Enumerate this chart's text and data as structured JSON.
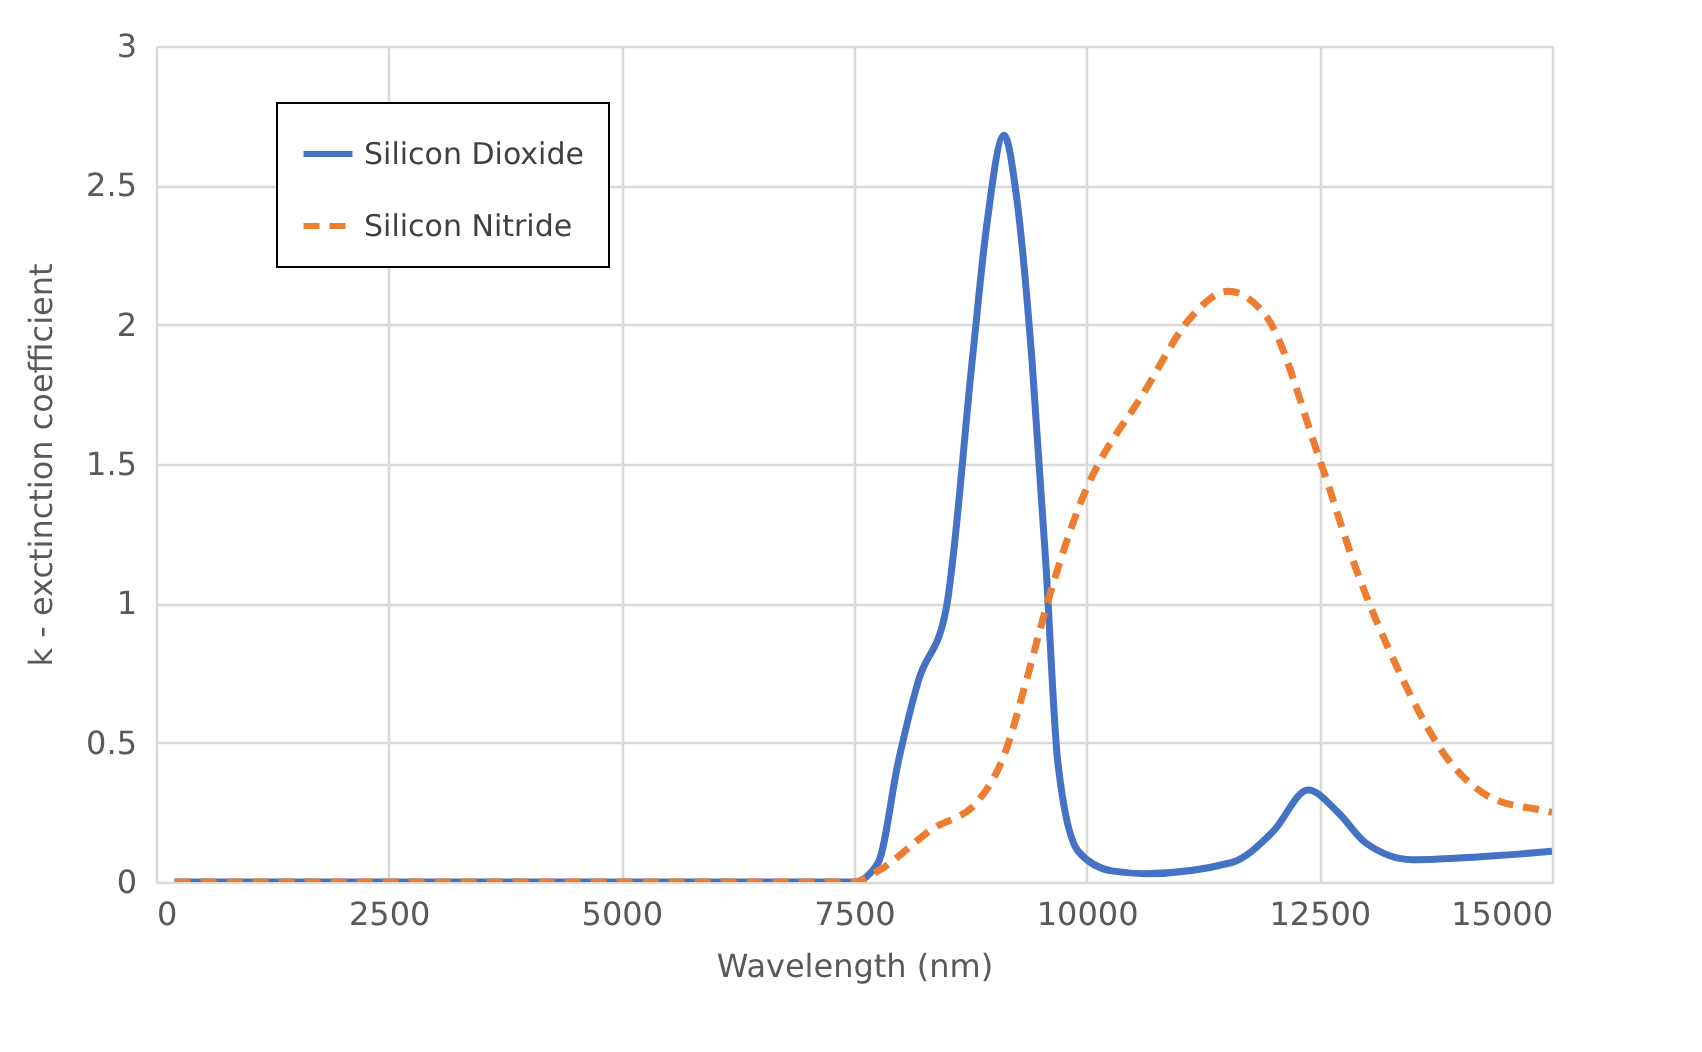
{
  "chart_data": {
    "type": "line",
    "xlabel": "Wavelength (nm)",
    "ylabel": "k - exctinction coefficient",
    "xlim": [
      0,
      15000
    ],
    "xticks": [
      0,
      2500,
      5000,
      7500,
      10000,
      12500,
      15000
    ],
    "ylim": [
      0,
      3
    ],
    "yticks": [
      0,
      0.5,
      1,
      1.5,
      2,
      2.5,
      3
    ],
    "grid": true,
    "legend": "top left",
    "series": [
      {
        "name": "Silicon Dioxide",
        "color": "#4472c4",
        "line_style": "solid",
        "x": [
          200,
          7500,
          7760,
          7975,
          8190,
          8490,
          8770,
          8920,
          9112,
          9250,
          9413,
          9560,
          9690,
          9910,
          10270,
          10640,
          11560,
          12000,
          12380,
          12700,
          13000,
          13500,
          14200,
          15000
        ],
        "values": [
          0,
          0,
          0.07,
          0.43,
          0.72,
          0.98,
          1.87,
          2.34,
          2.68,
          2.45,
          1.87,
          1.15,
          0.43,
          0.11,
          0.04,
          0.03,
          0.07,
          0.18,
          0.33,
          0.25,
          0.14,
          0.08,
          0.09,
          0.11
        ]
      },
      {
        "name": "Silicon Nitride",
        "color": "#ed7d31",
        "line_style": "dashed",
        "x": [
          200,
          7500,
          7760,
          8340,
          8830,
          9130,
          9350,
          9560,
          9910,
          10640,
          11130,
          11520,
          11930,
          12490,
          12920,
          13350,
          13860,
          14360,
          14850,
          15000
        ],
        "values": [
          0,
          0,
          0.04,
          0.19,
          0.29,
          0.47,
          0.72,
          0.98,
          1.34,
          1.77,
          2.03,
          2.12,
          2.03,
          1.53,
          1.1,
          0.76,
          0.45,
          0.3,
          0.26,
          0.25
        ]
      }
    ]
  }
}
